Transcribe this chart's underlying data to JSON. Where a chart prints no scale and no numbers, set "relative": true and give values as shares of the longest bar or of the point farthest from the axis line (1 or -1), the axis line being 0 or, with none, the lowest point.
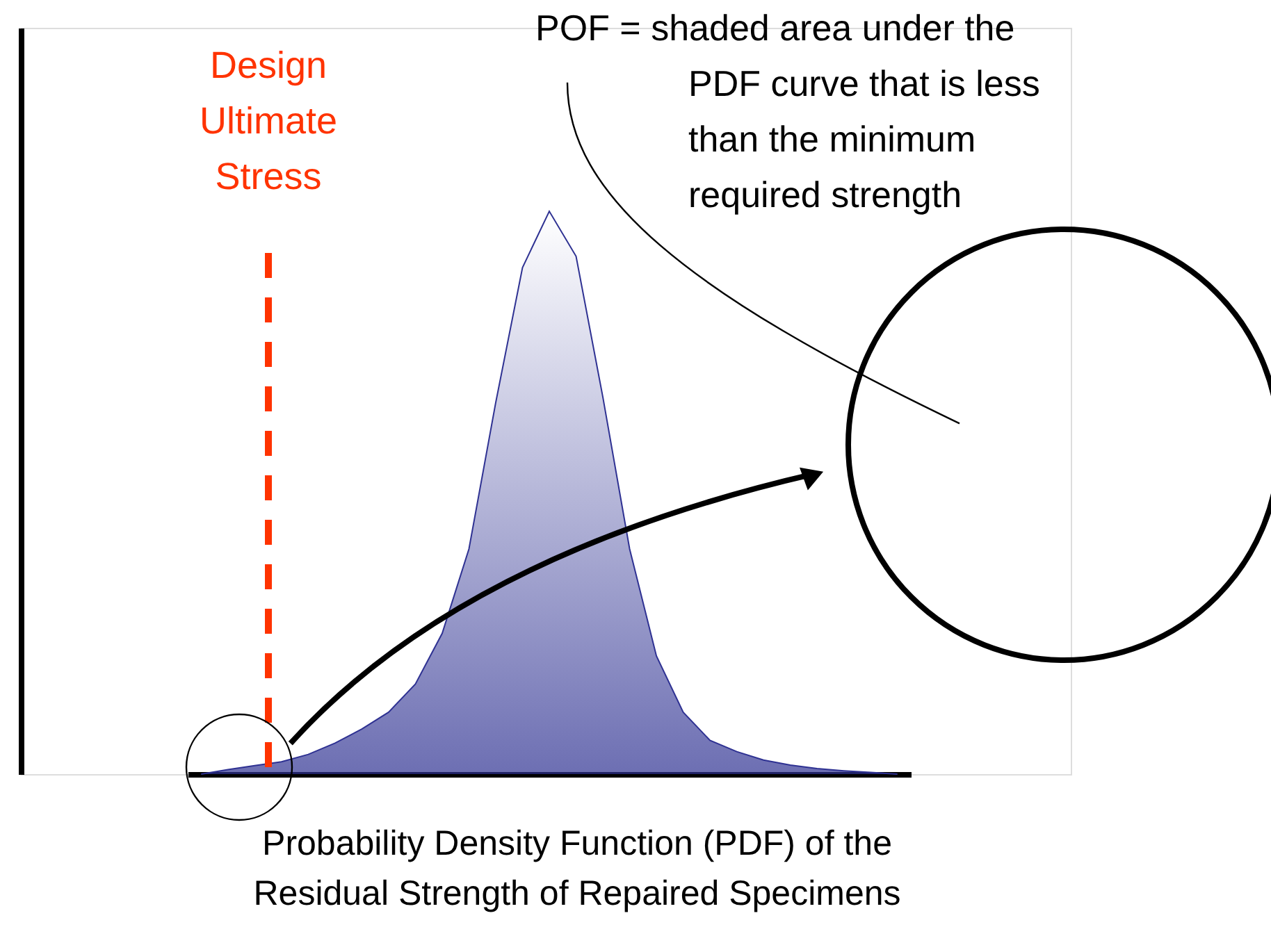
{
  "chart_data": {
    "type": "area",
    "relative": true,
    "xlabel": "Probability Density Function (PDF) of the Residual Strength of Repaired Specimens",
    "categories": [
      null,
      null,
      null,
      null,
      null,
      null,
      null,
      null,
      null,
      null,
      null,
      null,
      null,
      null,
      null,
      null,
      null,
      null,
      null,
      null,
      null,
      null,
      null,
      null,
      null,
      null,
      null
    ],
    "series": [
      {
        "color": "#2e3192",
        "values": [
          0,
          0.008,
          0.015,
          0.022,
          0.035,
          0.055,
          0.08,
          0.11,
          0.16,
          0.25,
          0.4,
          0.66,
          0.9,
          1.0,
          0.92,
          0.67,
          0.4,
          0.21,
          0.11,
          0.06,
          0.04,
          0.025,
          0.016,
          0.01,
          0.006,
          0.003,
          0
        ]
      }
    ],
    "ref_lines": [
      {
        "axis": "x",
        "label": "Design Ultimate Stress",
        "color": "#ff3300",
        "line_style": "dashed"
      }
    ],
    "annotations": [
      "POF = shaded area under the PDF curve that is less than the minimum required strength"
    ]
  }
}
